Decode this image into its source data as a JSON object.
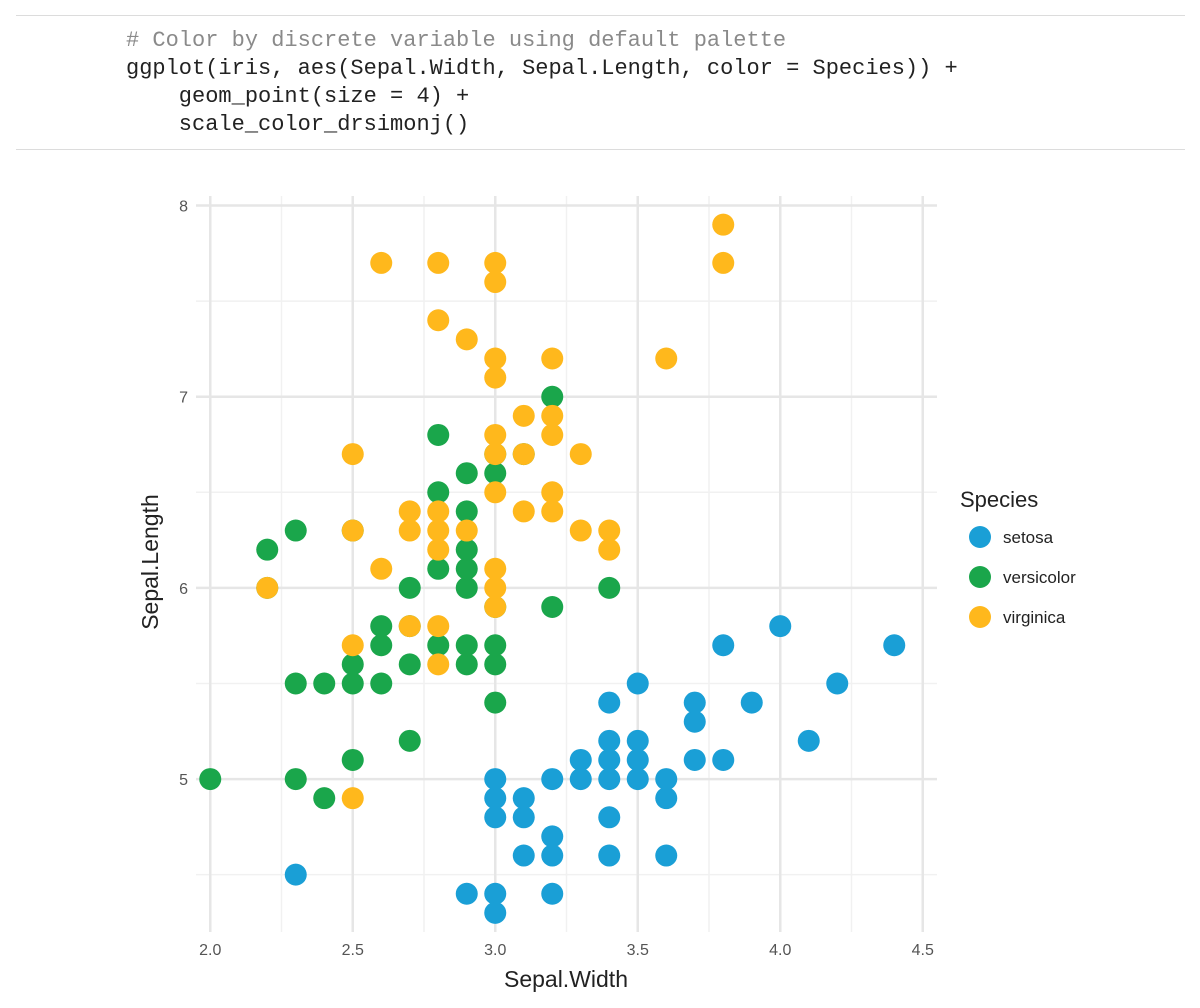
{
  "code": {
    "lines": [
      "# Color by discrete variable using default palette",
      "ggplot(iris, aes(Sepal.Width, Sepal.Length, color = Species)) +",
      "    geom_point(size = 4) +",
      "    scale_color_drsimonj()"
    ]
  },
  "chart_data": {
    "type": "scatter",
    "title": "",
    "xlabel": "Sepal.Width",
    "ylabel": "Sepal.Length",
    "xlim": [
      1.95,
      4.55
    ],
    "ylim": [
      4.2,
      8.05
    ],
    "x_ticks": [
      "2.0",
      "2.5",
      "3.0",
      "3.5",
      "4.0",
      "4.5"
    ],
    "y_ticks": [
      "5",
      "6",
      "7",
      "8"
    ],
    "grid": true,
    "legend": {
      "title": "Species",
      "position": "right"
    },
    "series": [
      {
        "name": "setosa",
        "color": "#1a9fd6",
        "points": [
          [
            2.3,
            4.5
          ],
          [
            2.9,
            4.4
          ],
          [
            3.0,
            4.4
          ],
          [
            3.0,
            4.3
          ],
          [
            3.2,
            4.4
          ],
          [
            3.0,
            4.8
          ],
          [
            3.0,
            4.9
          ],
          [
            3.0,
            5.0
          ],
          [
            3.1,
            4.8
          ],
          [
            3.1,
            4.9
          ],
          [
            3.1,
            4.6
          ],
          [
            3.2,
            4.6
          ],
          [
            3.2,
            4.7
          ],
          [
            3.2,
            5.0
          ],
          [
            3.3,
            5.0
          ],
          [
            3.3,
            5.1
          ],
          [
            3.4,
            4.6
          ],
          [
            3.4,
            4.8
          ],
          [
            3.4,
            5.0
          ],
          [
            3.4,
            5.1
          ],
          [
            3.4,
            5.2
          ],
          [
            3.4,
            5.4
          ],
          [
            3.5,
            5.0
          ],
          [
            3.5,
            5.1
          ],
          [
            3.5,
            5.2
          ],
          [
            3.5,
            5.5
          ],
          [
            3.6,
            4.6
          ],
          [
            3.6,
            4.9
          ],
          [
            3.6,
            5.0
          ],
          [
            3.7,
            5.1
          ],
          [
            3.7,
            5.3
          ],
          [
            3.7,
            5.4
          ],
          [
            3.8,
            5.1
          ],
          [
            3.8,
            5.7
          ],
          [
            3.9,
            5.4
          ],
          [
            4.0,
            5.8
          ],
          [
            4.1,
            5.2
          ],
          [
            4.2,
            5.5
          ],
          [
            4.4,
            5.7
          ]
        ]
      },
      {
        "name": "versicolor",
        "color": "#1aa64b",
        "points": [
          [
            2.0,
            5.0
          ],
          [
            2.2,
            6.2
          ],
          [
            2.2,
            6.0
          ],
          [
            2.3,
            5.0
          ],
          [
            2.3,
            5.5
          ],
          [
            2.3,
            6.3
          ],
          [
            2.4,
            4.9
          ],
          [
            2.4,
            5.5
          ],
          [
            2.5,
            5.1
          ],
          [
            2.5,
            5.5
          ],
          [
            2.5,
            5.6
          ],
          [
            2.5,
            6.3
          ],
          [
            2.6,
            5.5
          ],
          [
            2.6,
            5.7
          ],
          [
            2.6,
            5.8
          ],
          [
            2.7,
            5.2
          ],
          [
            2.7,
            5.6
          ],
          [
            2.7,
            5.8
          ],
          [
            2.7,
            6.0
          ],
          [
            2.8,
            5.7
          ],
          [
            2.8,
            6.1
          ],
          [
            2.8,
            6.5
          ],
          [
            2.8,
            6.8
          ],
          [
            2.9,
            5.6
          ],
          [
            2.9,
            5.7
          ],
          [
            2.9,
            6.0
          ],
          [
            2.9,
            6.1
          ],
          [
            2.9,
            6.2
          ],
          [
            2.9,
            6.4
          ],
          [
            2.9,
            6.6
          ],
          [
            3.0,
            5.4
          ],
          [
            3.0,
            5.6
          ],
          [
            3.0,
            5.7
          ],
          [
            3.0,
            5.9
          ],
          [
            3.0,
            6.6
          ],
          [
            3.0,
            6.7
          ],
          [
            3.1,
            6.7
          ],
          [
            3.2,
            5.9
          ],
          [
            3.2,
            7.0
          ],
          [
            3.4,
            6.0
          ]
        ]
      },
      {
        "name": "virginica",
        "color": "#ffb81c",
        "points": [
          [
            2.2,
            6.0
          ],
          [
            2.5,
            4.9
          ],
          [
            2.5,
            5.7
          ],
          [
            2.5,
            6.3
          ],
          [
            2.5,
            6.7
          ],
          [
            2.6,
            6.1
          ],
          [
            2.6,
            7.7
          ],
          [
            2.7,
            5.8
          ],
          [
            2.7,
            6.3
          ],
          [
            2.7,
            6.4
          ],
          [
            2.8,
            5.6
          ],
          [
            2.8,
            5.8
          ],
          [
            2.8,
            6.2
          ],
          [
            2.8,
            6.3
          ],
          [
            2.8,
            6.4
          ],
          [
            2.8,
            7.4
          ],
          [
            2.8,
            7.7
          ],
          [
            2.9,
            6.3
          ],
          [
            2.9,
            7.3
          ],
          [
            3.0,
            5.9
          ],
          [
            3.0,
            6.0
          ],
          [
            3.0,
            6.1
          ],
          [
            3.0,
            6.5
          ],
          [
            3.0,
            6.7
          ],
          [
            3.0,
            6.8
          ],
          [
            3.0,
            7.1
          ],
          [
            3.0,
            7.2
          ],
          [
            3.0,
            7.6
          ],
          [
            3.0,
            7.7
          ],
          [
            3.1,
            6.4
          ],
          [
            3.1,
            6.7
          ],
          [
            3.1,
            6.9
          ],
          [
            3.2,
            6.4
          ],
          [
            3.2,
            6.5
          ],
          [
            3.2,
            6.8
          ],
          [
            3.2,
            6.9
          ],
          [
            3.2,
            7.2
          ],
          [
            3.3,
            6.3
          ],
          [
            3.3,
            6.7
          ],
          [
            3.4,
            6.2
          ],
          [
            3.4,
            6.3
          ],
          [
            3.6,
            7.2
          ],
          [
            3.8,
            7.7
          ],
          [
            3.8,
            7.9
          ]
        ]
      }
    ]
  }
}
